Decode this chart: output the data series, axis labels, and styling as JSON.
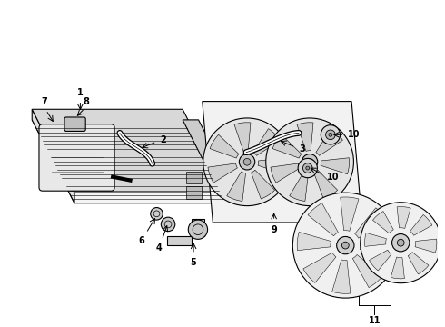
{
  "bg_color": "#ffffff",
  "line_color": "#000000",
  "lw": 0.8
}
